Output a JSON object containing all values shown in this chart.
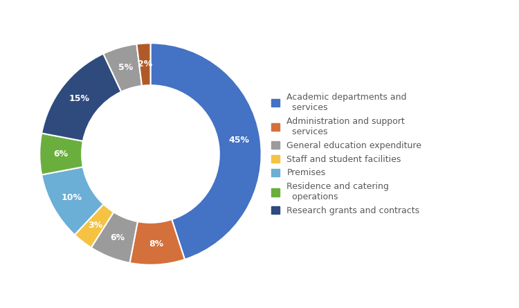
{
  "values": [
    45,
    8,
    6,
    3,
    10,
    6,
    15,
    5,
    2
  ],
  "colors": [
    "#4472C4",
    "#D4703C",
    "#9B9B9B",
    "#F5C242",
    "#6BAED6",
    "#6AAF3D",
    "#2F4A7C",
    "#9B9B9B",
    "#B05A2A"
  ],
  "pct_labels": [
    "45%",
    "8%",
    "6%",
    "3%",
    "10%",
    "6%",
    "15%",
    "5%",
    "2%"
  ],
  "legend_labels": [
    "Academic departments and\n  services",
    "Administration and support\n  services",
    "General education expenditure",
    "Staff and student facilities",
    "Premises",
    "Residence and catering\n  operations",
    "Research grants and contracts"
  ],
  "legend_colors": [
    "#4472C4",
    "#D4703C",
    "#9B9B9B",
    "#F5C242",
    "#6BAED6",
    "#6AAF3D",
    "#2F4A7C"
  ],
  "background_color": "#FFFFFF"
}
